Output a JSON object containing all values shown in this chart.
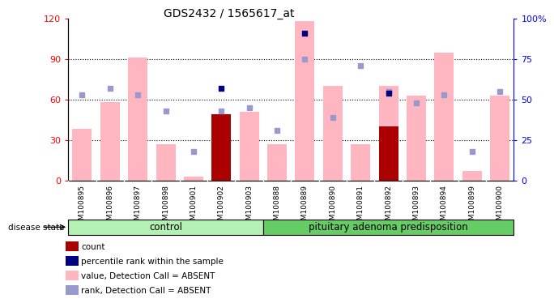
{
  "title": "GDS2432 / 1565617_at",
  "samples": [
    "GSM100895",
    "GSM100896",
    "GSM100897",
    "GSM100898",
    "GSM100901",
    "GSM100902",
    "GSM100903",
    "GSM100888",
    "GSM100889",
    "GSM100890",
    "GSM100891",
    "GSM100892",
    "GSM100893",
    "GSM100894",
    "GSM100899",
    "GSM100900"
  ],
  "control_count": 7,
  "pituitary_count": 9,
  "value_absent": [
    38,
    58,
    91,
    27,
    3,
    49,
    51,
    27,
    118,
    70,
    27,
    70,
    63,
    95,
    7,
    63
  ],
  "rank_absent_pct": [
    53,
    57,
    53,
    43,
    18,
    43,
    45,
    31,
    75,
    39,
    71,
    55,
    48,
    53,
    18,
    55
  ],
  "count": [
    0,
    0,
    0,
    0,
    0,
    49,
    0,
    0,
    0,
    0,
    0,
    40,
    0,
    0,
    0,
    0
  ],
  "percentile_pct": [
    0,
    0,
    0,
    0,
    0,
    57,
    0,
    0,
    91,
    0,
    0,
    54,
    0,
    0,
    0,
    0
  ],
  "ylim_left": [
    0,
    120
  ],
  "yticks_left": [
    0,
    30,
    60,
    90,
    120
  ],
  "yticks_right": [
    0,
    25,
    50,
    75,
    100
  ],
  "ytick_labels_right": [
    "0",
    "25",
    "50",
    "75",
    "100%"
  ],
  "hlines": [
    30,
    60,
    90
  ],
  "bar_color_dark_red": "#aa0000",
  "bar_color_pink": "#ffb6c1",
  "dot_color_blue": "#000080",
  "dot_color_light_blue": "#9999cc",
  "group_label_control": "control",
  "group_label_pituitary": "pituitary adenoma predisposition",
  "disease_state_label": "disease state",
  "control_bg": "#b3f0b3",
  "pituitary_bg": "#66cc66",
  "legend": [
    {
      "label": "count",
      "color": "#aa0000"
    },
    {
      "label": "percentile rank within the sample",
      "color": "#000080"
    },
    {
      "label": "value, Detection Call = ABSENT",
      "color": "#ffb6c1"
    },
    {
      "label": "rank, Detection Call = ABSENT",
      "color": "#9999cc"
    }
  ]
}
